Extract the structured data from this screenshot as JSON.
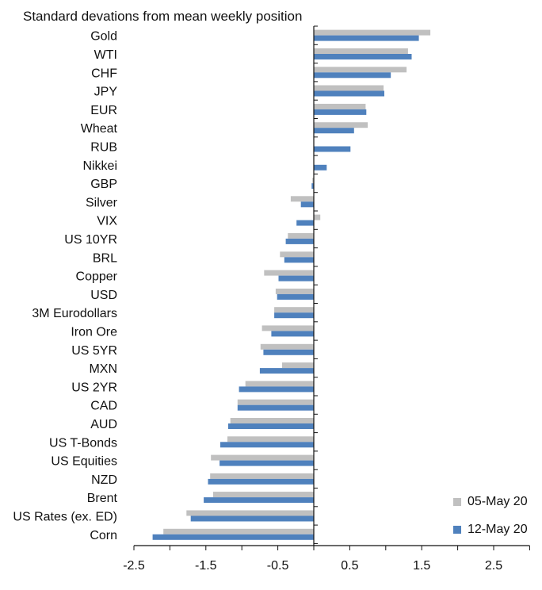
{
  "chart_data": {
    "type": "bar",
    "orientation": "horizontal",
    "title": "Standard devations from mean weekly position",
    "xlabel": "",
    "ylabel": "",
    "xlim": [
      -2.5,
      3.0
    ],
    "x_ticks": [
      "-2.5",
      "-1.5",
      "-0.5",
      "0.5",
      "1.5",
      "2.5"
    ],
    "x_tick_values": [
      -2.5,
      -1.5,
      -0.5,
      0.5,
      1.5,
      2.5
    ],
    "grid": false,
    "legend_position": "bottom-right",
    "categories": [
      "Gold",
      "WTI",
      "CHF",
      "JPY",
      "EUR",
      "Wheat",
      "RUB",
      "Nikkei",
      "GBP",
      "Silver",
      "VIX",
      "US 10YR",
      "BRL",
      "Copper",
      "USD",
      "3M Eurodollars",
      "Iron Ore",
      "US 5YR",
      "MXN",
      "US 2YR",
      "CAD",
      "AUD",
      "US T-Bonds",
      "US Equities",
      "NZD",
      "Brent",
      "US Rates (ex. ED)",
      "Corn"
    ],
    "series": [
      {
        "name": "05-May 20",
        "color": "#c0c0c0",
        "values": [
          1.62,
          1.31,
          1.29,
          0.97,
          0.72,
          0.75,
          0.0,
          0.0,
          -0.02,
          -0.32,
          0.09,
          -0.36,
          -0.47,
          -0.69,
          -0.53,
          -0.55,
          -0.72,
          -0.74,
          -0.44,
          -0.95,
          -1.06,
          -1.16,
          -1.2,
          -1.43,
          -1.44,
          -1.4,
          -1.77,
          -2.09
        ]
      },
      {
        "name": "12-May 20",
        "color": "#4f81bd",
        "values": [
          1.46,
          1.36,
          1.07,
          0.98,
          0.73,
          0.56,
          0.51,
          0.18,
          -0.03,
          -0.18,
          -0.24,
          -0.39,
          -0.41,
          -0.49,
          -0.51,
          -0.55,
          -0.59,
          -0.7,
          -0.75,
          -1.04,
          -1.06,
          -1.19,
          -1.3,
          -1.31,
          -1.47,
          -1.53,
          -1.71,
          -2.24
        ]
      }
    ]
  }
}
